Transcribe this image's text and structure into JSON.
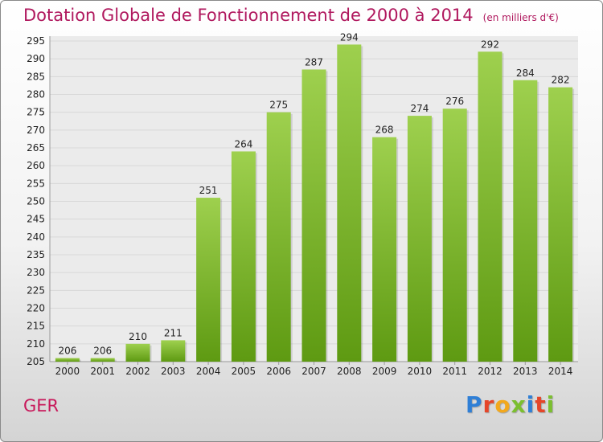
{
  "title": "Dotation Globale de Fonctionnement de 2000 à 2014",
  "subtitle": "(en milliers d'€)",
  "place": "GER",
  "logo": {
    "text": "Proxiti",
    "colors": [
      "#2f7fd6",
      "#e5462a",
      "#f2a81d",
      "#7bbf2f",
      "#2f7fd6",
      "#e5462a",
      "#7bbf2f"
    ]
  },
  "colors": {
    "bar_top": "#9ed04e",
    "bar_bottom": "#5e9a12",
    "title": "#b0185e",
    "grid": "#d8d8d8"
  },
  "chart_data": {
    "type": "bar",
    "categories": [
      "2000",
      "2001",
      "2002",
      "2003",
      "2004",
      "2005",
      "2006",
      "2007",
      "2008",
      "2009",
      "2010",
      "2011",
      "2012",
      "2013",
      "2014"
    ],
    "values": [
      206,
      206,
      210,
      211,
      251,
      264,
      275,
      287,
      294,
      268,
      274,
      276,
      292,
      284,
      282
    ],
    "data_labels": [
      "206",
      "206",
      "210",
      "211",
      "251",
      "264",
      "275",
      "287",
      "294",
      "268",
      "274",
      "276",
      "292",
      "284",
      "282"
    ],
    "yticks": [
      205,
      210,
      215,
      220,
      225,
      230,
      235,
      240,
      245,
      250,
      255,
      260,
      265,
      270,
      275,
      280,
      285,
      290,
      295
    ],
    "ytick_labels": [
      "205",
      "210",
      "215",
      "220",
      "225",
      "230",
      "235",
      "240",
      "245",
      "250",
      "255",
      "260",
      "265",
      "270",
      "275",
      "280",
      "285",
      "290",
      "295"
    ],
    "ylim": [
      205,
      295
    ],
    "grid": true,
    "legend": "none"
  }
}
